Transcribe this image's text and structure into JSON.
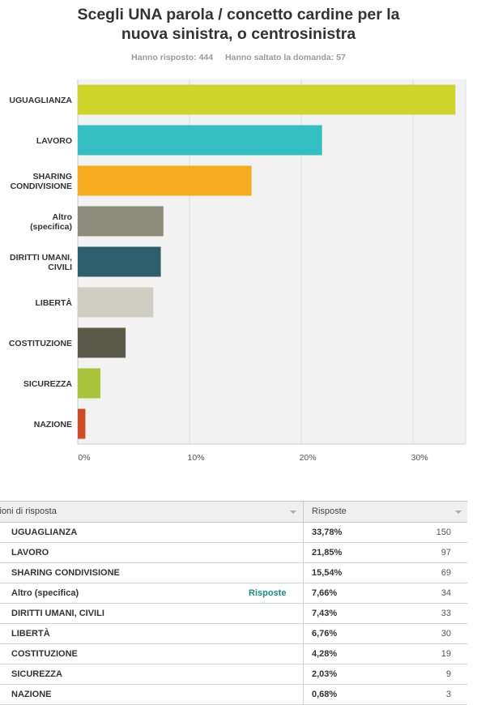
{
  "header": {
    "title_line1": "Scegli UNA parola / concetto cardine per la",
    "title_line2": "nuova sinistra, o centrosinistra",
    "answered": "Hanno risposto: 444",
    "skipped": "Hanno saltato la domanda: 57"
  },
  "chart_data": {
    "type": "bar",
    "orientation": "horizontal",
    "categories": [
      "UGUAGLIANZA",
      "LAVORO",
      "SHARING CONDIVISIONE",
      "Altro (specifica)",
      "DIRITTI UMANI, CIVILI",
      "LIBERTÀ",
      "COSTITUZIONE",
      "SICUREZZA",
      "NAZIONE"
    ],
    "category_lines": [
      [
        "UGUAGLIANZA"
      ],
      [
        "LAVORO"
      ],
      [
        "SHARING",
        "CONDIVISIONE"
      ],
      [
        "Altro",
        "(specifica)"
      ],
      [
        "DIRITTI UMANI,",
        "CIVILI"
      ],
      [
        "LIBERTÀ"
      ],
      [
        "COSTITUZIONE"
      ],
      [
        "SICUREZZA"
      ],
      [
        "NAZIONE"
      ]
    ],
    "values": [
      33.78,
      21.85,
      15.54,
      7.66,
      7.43,
      6.76,
      4.28,
      2.03,
      0.68
    ],
    "colors": [
      "#cfd32a",
      "#34bfc2",
      "#f5ab1d",
      "#8d8c7b",
      "#2d5e6c",
      "#cfcdc0",
      "#5b5948",
      "#a9c43a",
      "#cf4b25"
    ],
    "xlim": [
      0,
      34.7
    ],
    "xticks": [
      0,
      10,
      20,
      30
    ],
    "xtick_labels": [
      "0%",
      "10%",
      "20%",
      "30%"
    ],
    "grid": true,
    "legend": "none"
  },
  "table": {
    "col_option": "zioni di risposta",
    "col_responses": "Risposte",
    "link_label": "Risposte",
    "rows": [
      {
        "label": "UGUAGLIANZA",
        "pct": "33,78%",
        "count": "150"
      },
      {
        "label": "LAVORO",
        "pct": "21,85%",
        "count": "97"
      },
      {
        "label": "SHARING CONDIVISIONE",
        "pct": "15,54%",
        "count": "69"
      },
      {
        "label": "Altro (specifica)",
        "pct": "7,66%",
        "count": "34"
      },
      {
        "label": "DIRITTI UMANI, CIVILI",
        "pct": "7,43%",
        "count": "33"
      },
      {
        "label": "LIBERTÀ",
        "pct": "6,76%",
        "count": "30"
      },
      {
        "label": "COSTITUZIONE",
        "pct": "4,28%",
        "count": "19"
      },
      {
        "label": "SICUREZZA",
        "pct": "2,03%",
        "count": "9"
      },
      {
        "label": "NAZIONE",
        "pct": "0,68%",
        "count": "3"
      }
    ]
  }
}
